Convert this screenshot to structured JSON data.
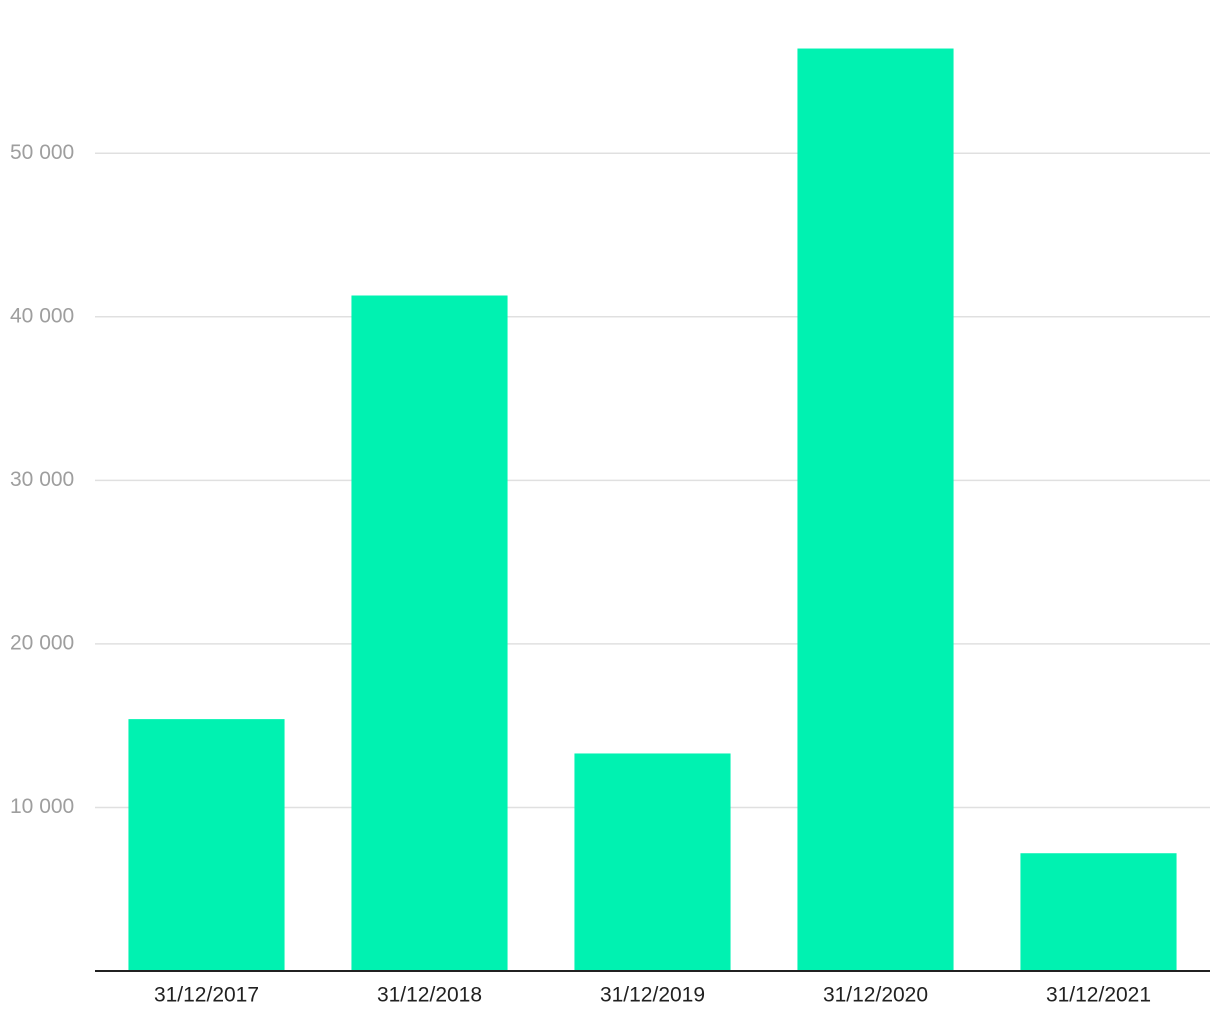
{
  "chart_data": {
    "type": "bar",
    "categories": [
      "31/12/2017",
      "31/12/2018",
      "31/12/2019",
      "31/12/2020",
      "31/12/2021"
    ],
    "values": [
      15400,
      41300,
      13300,
      56400,
      7200
    ],
    "color": "#00f2b1",
    "ylim": [
      0,
      59000
    ],
    "yticks": [
      {
        "value": 10000,
        "label": "10 000"
      },
      {
        "value": 20000,
        "label": "20 000"
      },
      {
        "value": 30000,
        "label": "30 000"
      },
      {
        "value": 40000,
        "label": "40 000"
      },
      {
        "value": 50000,
        "label": "50 000"
      }
    ],
    "grid": true
  }
}
